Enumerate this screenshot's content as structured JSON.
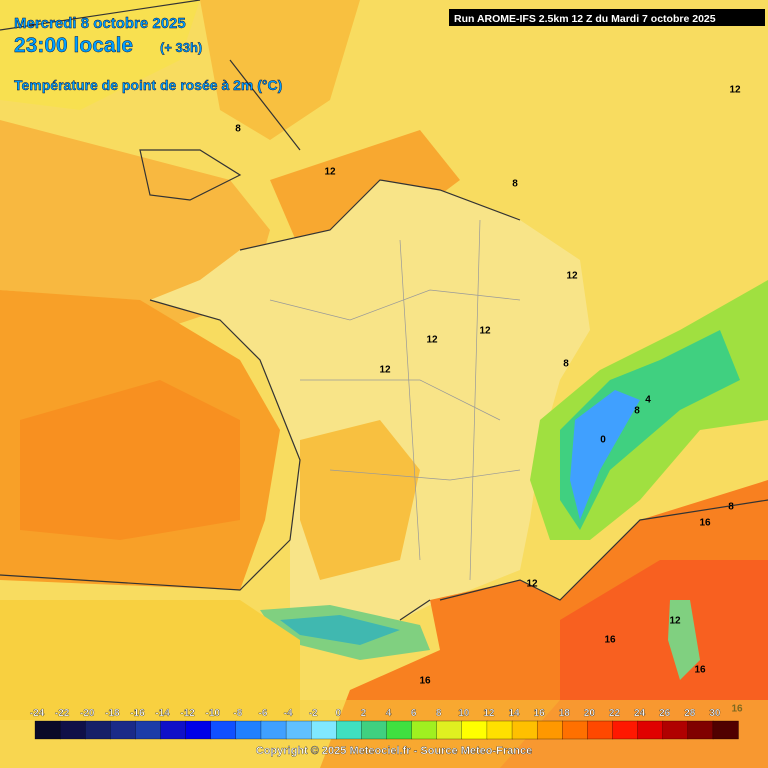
{
  "header": {
    "date": "Mercredi 8 octobre 2025",
    "time": "23:00 locale",
    "lead": "(+ 33h)",
    "parameter": "Température de point de rosée à 2m (°C)",
    "run": "Run AROME-IFS 2.5km 12 Z du Mardi 7 octobre 2025"
  },
  "map": {
    "contour_labels": [
      12,
      8,
      12,
      8,
      12,
      12,
      12,
      12,
      8,
      4,
      8,
      0,
      8,
      16,
      12,
      12,
      16,
      16,
      16,
      16
    ]
  },
  "legend": {
    "ticks": [
      -24,
      -22,
      -20,
      -18,
      -16,
      -14,
      -12,
      -10,
      -8,
      -6,
      -4,
      -2,
      0,
      2,
      4,
      6,
      8,
      10,
      12,
      14,
      16,
      18,
      20,
      22,
      24,
      26,
      28,
      30
    ],
    "colors": [
      "#0a0a28",
      "#101048",
      "#162068",
      "#1a2a88",
      "#1c3ca8",
      "#1010c8",
      "#0000e8",
      "#1050ff",
      "#2080ff",
      "#40a0ff",
      "#60c0ff",
      "#80e8ff",
      "#40e0c0",
      "#40d080",
      "#40e040",
      "#a0f020",
      "#e0f020",
      "#ffff00",
      "#ffe000",
      "#ffc000",
      "#ff9800",
      "#ff7000",
      "#ff4800",
      "#ff1800",
      "#e00000",
      "#b00000",
      "#800000",
      "#500000"
    ]
  },
  "footer": {
    "copyright": "Copyright © 2025 Meteociel.fr - Source Meteo-France"
  }
}
